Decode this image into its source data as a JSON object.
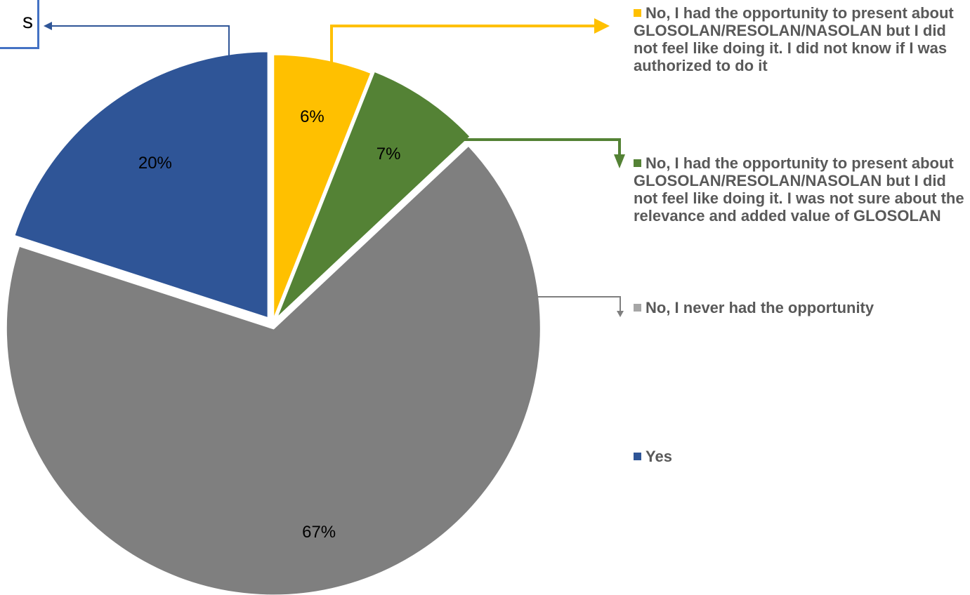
{
  "chart_data": {
    "type": "pie",
    "slices": [
      {
        "label": "No, I had the opportunity to present about GLOSOLAN/RESOLAN/NASOLAN but I did not feel like doing it. I did not know if I was authorized to do it",
        "value": 6,
        "display": "6%",
        "color": "#FFC000"
      },
      {
        "label": "No, I had the opportunity to present about GLOSOLAN/RESOLAN/NASOLAN but I did not feel like doing it. I was not sure about the relevance and added value of GLOSOLAN",
        "value": 7,
        "display": "7%",
        "color": "#548235"
      },
      {
        "label": "No, I never had the opportunity",
        "value": 67,
        "display": "67%",
        "color": "#7F7F7F"
      },
      {
        "label": "Yes",
        "value": 20,
        "display": "20%",
        "color": "#2F5597"
      }
    ],
    "legend_position": "right"
  },
  "callout": {
    "text": "s"
  }
}
